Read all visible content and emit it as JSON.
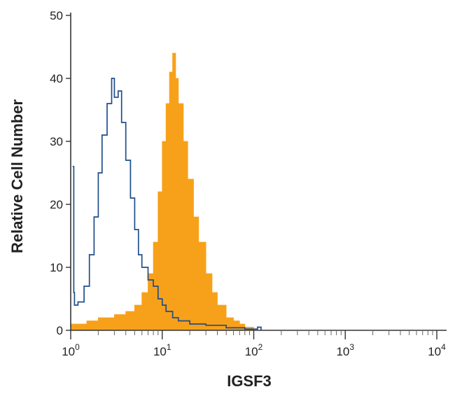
{
  "chart_data": {
    "type": "area",
    "title": "",
    "xlabel": "IGSF3",
    "ylabel": "Relative Cell Number",
    "xscale": "log",
    "xlim": [
      1,
      10000
    ],
    "ylim": [
      0,
      50
    ],
    "grid": false,
    "x_ticks": [
      {
        "base": "10",
        "exp": "0"
      },
      {
        "base": "10",
        "exp": "1"
      },
      {
        "base": "10",
        "exp": "2"
      },
      {
        "base": "10",
        "exp": "3"
      },
      {
        "base": "10",
        "exp": "4"
      }
    ],
    "y_ticks": [
      "0",
      "10",
      "20",
      "30",
      "40",
      "50"
    ],
    "series": [
      {
        "style": "filled",
        "color": "#f7a11a",
        "x": [
          1.0,
          1.5,
          2.0,
          3.0,
          4.0,
          5.0,
          6.0,
          7.0,
          8.0,
          9.0,
          10.0,
          11.0,
          12.0,
          13.0,
          14.0,
          15.0,
          17.0,
          19.0,
          22.0,
          25.0,
          30.0,
          35.0,
          40.0,
          50.0,
          60.0,
          70.0,
          80.0,
          100.0
        ],
        "y": [
          1,
          1.5,
          2,
          2.5,
          3,
          4,
          6,
          9,
          14,
          22,
          30,
          36,
          41,
          44,
          40,
          36,
          30,
          24,
          18,
          14,
          9,
          6,
          4,
          2,
          1.5,
          1,
          0.5,
          0
        ]
      },
      {
        "style": "outline",
        "color": "#1f4e8c",
        "x": [
          1.05,
          1.08,
          1.1,
          1.2,
          1.4,
          1.6,
          1.8,
          2.0,
          2.2,
          2.5,
          2.8,
          3.0,
          3.3,
          3.6,
          4.0,
          4.5,
          5.0,
          5.5,
          6.0,
          7.0,
          8.0,
          9.0,
          10.0,
          11.0,
          13.0,
          15.0,
          20.0,
          30.0,
          50.0,
          80.0,
          110.0,
          120.0
        ],
        "y": [
          26,
          6,
          4,
          4.5,
          7,
          12,
          18,
          25,
          31,
          36,
          40,
          37,
          38,
          33,
          27,
          21,
          16,
          12,
          10,
          8,
          7,
          5,
          4,
          3,
          2,
          1.5,
          1,
          0.8,
          0.4,
          0.2,
          0.5,
          0
        ]
      }
    ]
  }
}
